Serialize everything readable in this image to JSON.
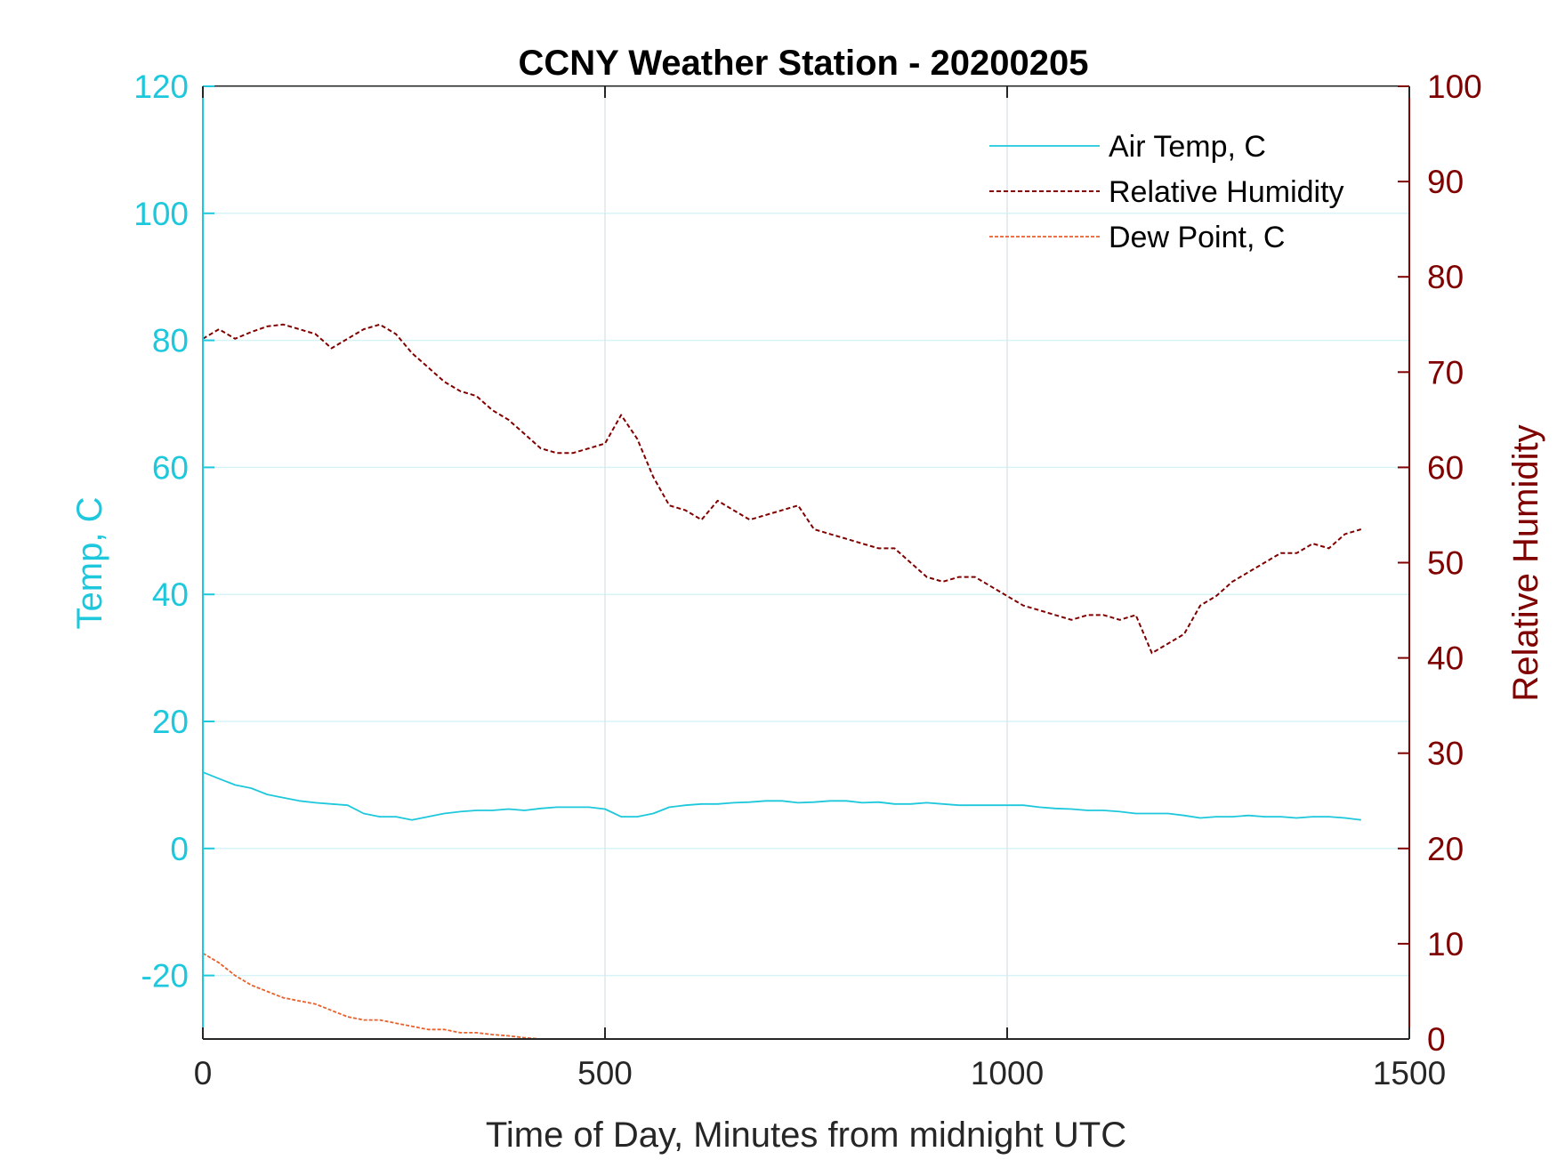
{
  "colors": {
    "temp_axis": "#1ec8dc",
    "humidity_axis": "#800000",
    "air_temp": "#1ec8dc",
    "humidity": "#800000",
    "dew_point": "#e8602c",
    "grid": "#dfe6ea",
    "grid_h": "#d6f4f8",
    "x_axis": "#262626"
  },
  "chart_data": {
    "type": "line",
    "title": "CCNY Weather Station - 20200205",
    "xlabel": "Time of Day, Minutes from midnight UTC",
    "ylabel_left": "Temp, C",
    "ylabel_right": "Relative Humidity",
    "xlim": [
      0,
      1500
    ],
    "ylim_left": [
      -30,
      120
    ],
    "ylim_right": [
      0,
      100
    ],
    "x_ticks": [
      0,
      500,
      1000,
      1500
    ],
    "y_ticks_left": [
      -20,
      0,
      20,
      40,
      60,
      80,
      100,
      120
    ],
    "y_ticks_right": [
      0,
      10,
      20,
      30,
      40,
      50,
      60,
      70,
      80,
      90,
      100
    ],
    "grid": "on",
    "legend_position": "top-right",
    "series": [
      {
        "name": "Air Temp, C",
        "axis": "left",
        "style": "solid",
        "x": [
          0,
          20,
          40,
          60,
          80,
          100,
          120,
          140,
          160,
          180,
          200,
          220,
          240,
          260,
          280,
          300,
          320,
          340,
          360,
          380,
          400,
          420,
          440,
          460,
          480,
          500,
          520,
          540,
          560,
          580,
          600,
          620,
          640,
          660,
          680,
          700,
          720,
          740,
          760,
          780,
          800,
          820,
          840,
          860,
          880,
          900,
          920,
          940,
          960,
          980,
          1000,
          1020,
          1040,
          1060,
          1080,
          1100,
          1120,
          1140,
          1160,
          1180,
          1200,
          1220,
          1240,
          1260,
          1280,
          1300,
          1320,
          1340,
          1360,
          1380,
          1400,
          1420,
          1440
        ],
        "values": [
          12,
          11,
          10,
          9.5,
          8.5,
          8,
          7.5,
          7.2,
          7,
          6.8,
          5.5,
          5,
          5,
          4.5,
          5,
          5.5,
          5.8,
          6,
          6,
          6.2,
          6,
          6.3,
          6.5,
          6.5,
          6.5,
          6.2,
          5,
          5,
          5.5,
          6.5,
          6.8,
          7,
          7,
          7.2,
          7.3,
          7.5,
          7.5,
          7.2,
          7.3,
          7.5,
          7.5,
          7.2,
          7.3,
          7,
          7,
          7.2,
          7,
          6.8,
          6.8,
          6.8,
          6.8,
          6.8,
          6.5,
          6.3,
          6.2,
          6,
          6,
          5.8,
          5.5,
          5.5,
          5.5,
          5.2,
          4.8,
          5,
          5,
          5.2,
          5,
          5,
          4.8,
          5,
          5,
          4.8,
          4.5
        ]
      },
      {
        "name": "Relative Humidity",
        "axis": "right",
        "style": "dashed",
        "x": [
          0,
          20,
          40,
          60,
          80,
          100,
          120,
          140,
          160,
          180,
          200,
          220,
          240,
          260,
          280,
          300,
          320,
          340,
          360,
          380,
          400,
          420,
          440,
          460,
          480,
          500,
          520,
          540,
          560,
          580,
          600,
          620,
          640,
          660,
          680,
          700,
          720,
          740,
          760,
          780,
          800,
          820,
          840,
          860,
          880,
          900,
          920,
          940,
          960,
          980,
          1000,
          1020,
          1040,
          1060,
          1080,
          1100,
          1120,
          1140,
          1160,
          1180,
          1200,
          1220,
          1240,
          1260,
          1280,
          1300,
          1320,
          1340,
          1360,
          1380,
          1400,
          1420,
          1440
        ],
        "values": [
          73.5,
          74.5,
          73.5,
          74.2,
          74.8,
          75,
          74.5,
          74,
          72.5,
          73.5,
          74.5,
          75,
          74,
          72,
          70.5,
          69,
          68,
          67.5,
          66,
          65,
          63.5,
          62,
          61.5,
          61.5,
          62,
          62.5,
          65.5,
          63,
          59,
          56,
          55.5,
          54.5,
          56.5,
          55.5,
          54.5,
          55,
          55.5,
          56,
          53.5,
          53,
          52.5,
          52,
          51.5,
          51.5,
          50,
          48.5,
          48,
          48.5,
          48.5,
          47.5,
          46.5,
          45.5,
          45,
          44.5,
          44,
          44.5,
          44.5,
          44,
          44.5,
          40.5,
          41.5,
          42.5,
          45.5,
          46.5,
          48,
          49,
          50,
          51,
          51,
          52,
          51.5,
          53,
          53.5
        ]
      },
      {
        "name": "Dew Point, C",
        "axis": "left",
        "style": "dashed",
        "x": [
          0,
          20,
          40,
          60,
          80,
          100,
          120,
          140,
          160,
          180,
          200,
          220,
          240,
          260,
          280,
          300,
          320,
          340,
          360,
          380,
          400,
          420,
          440,
          460,
          480
        ],
        "values": [
          -16.5,
          -18,
          -20,
          -21.5,
          -22.5,
          -23.5,
          -24,
          -24.5,
          -25.5,
          -26.5,
          -27,
          -27,
          -27.5,
          -28,
          -28.5,
          -28.5,
          -29,
          -29,
          -29.3,
          -29.5,
          -29.8,
          -30,
          -30,
          -30,
          -30
        ]
      }
    ]
  }
}
